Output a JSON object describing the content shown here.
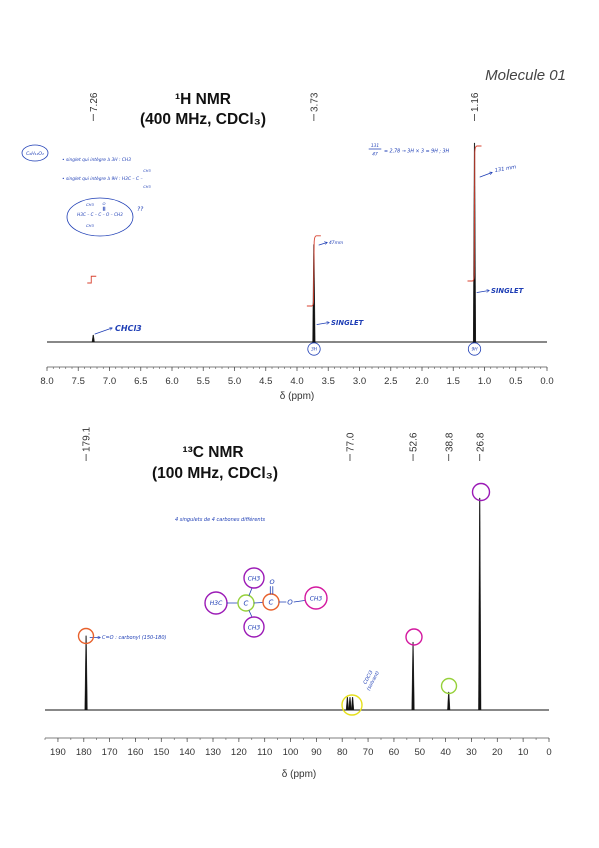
{
  "header": {
    "molecule_label": "Molecule 01"
  },
  "colors": {
    "spectrum": "#111111",
    "axis": "#555555",
    "integration": "#d8412f",
    "handwriting": "#1d3db5",
    "circle_carbonyl": "#e8612c",
    "circle_solvent": "#e6e01b",
    "circle_methoxy": "#d3189f",
    "circle_quaternary": "#96d13a",
    "circle_tert_butyl": "#9b1ab6"
  },
  "chart_data": [
    {
      "type": "line",
      "title": "¹H NMR",
      "subtitle": "(400 MHz, CDCl₃)",
      "xlabel": "δ (ppm)",
      "ylabel": "",
      "xlim": [
        8.0,
        0.0
      ],
      "grid": false,
      "x_ticks": [
        "8.0",
        "7.5",
        "7.0",
        "6.5",
        "6.0",
        "5.5",
        "5.0",
        "4.5",
        "4.0",
        "3.5",
        "3.0",
        "2.5",
        "2.0",
        "1.5",
        "1.0",
        "0.5",
        "0.0"
      ],
      "peaks": [
        {
          "shift": 7.26,
          "label": "7.26",
          "intensity": 0.035,
          "integral": 0.05
        },
        {
          "shift": 3.73,
          "label": "3.73",
          "intensity": 0.49,
          "integral": 0.52
        },
        {
          "shift": 1.16,
          "label": "1.16",
          "intensity": 1.0,
          "integral": 1.0
        }
      ]
    },
    {
      "type": "line",
      "title": "¹³C NMR",
      "subtitle": "(100 MHz, CDCl₃)",
      "xlabel": "δ (ppm)",
      "ylabel": "",
      "xlim": [
        195,
        0
      ],
      "grid": false,
      "x_ticks": [
        "190",
        "180",
        "170",
        "160",
        "150",
        "140",
        "130",
        "120",
        "110",
        "100",
        "90",
        "80",
        "70",
        "60",
        "50",
        "40",
        "30",
        "20",
        "10",
        "0"
      ],
      "peaks": [
        {
          "shift": 179.1,
          "label": "179.1",
          "intensity": 0.35
        },
        {
          "shift": 77.0,
          "label": "77.0",
          "intensity": 0.06,
          "lines": 3
        },
        {
          "shift": 52.6,
          "label": "52.6",
          "intensity": 0.32
        },
        {
          "shift": 38.8,
          "label": "38.8",
          "intensity": 0.085
        },
        {
          "shift": 26.8,
          "label": "26.8",
          "intensity": 1.0
        }
      ]
    }
  ],
  "notes_1h": {
    "formula": "C₆H₁₂O₂",
    "line1": "• singlet qui intègre à 3H : CH3",
    "line2": "• singlet qui intègre à 9H : H3C – C –",
    "line2_top": "CH3",
    "line2_bottom": "CH3",
    "structure_top_me": "CH3",
    "structure_top_o": "O",
    "structure_main": "H3C – C – C – O – CH3",
    "structure_bottom_me": "CH3",
    "structure_question": "??",
    "ratio_numerator": "131",
    "ratio_denominator": "47",
    "ratio_text": "= 2,78 → 3H × 3 = 9H ; 3H",
    "height_large": "131 mm",
    "height_small": "47mm",
    "singlet_a": "SINGLET",
    "singlet_b": "SINGLET",
    "solvent": "CHCl3",
    "integral_3h": "3H",
    "integral_9h": "9H"
  },
  "notes_13c": {
    "summary": "4 singulets de 4 carbones différents",
    "carbonyl": "C=O : carbonyl (150-180)",
    "solvent_line1": "CDCl3",
    "solvent_line2": "(solvant)",
    "structure": {
      "h3c_left": "H3C",
      "c_quat": "C",
      "ch3_top": "CH3",
      "ch3_bottom": "CH3",
      "c_carbonyl": "C",
      "o_carbonyl": "O",
      "o_ester": "O",
      "ch3_ester": "CH3"
    }
  }
}
